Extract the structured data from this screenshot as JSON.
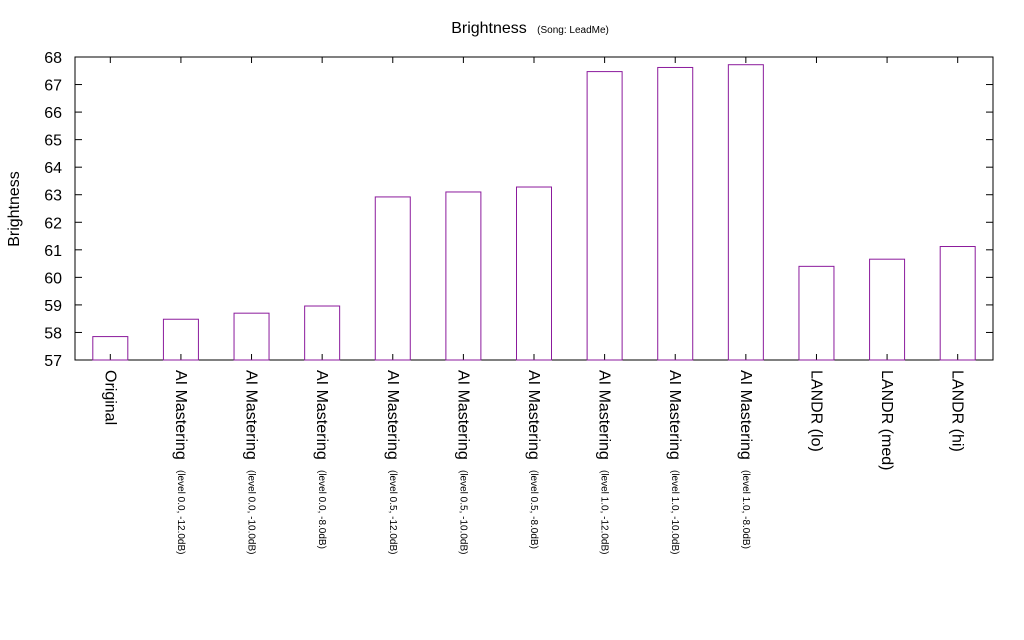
{
  "chart_data": {
    "type": "bar",
    "title": "Brightness",
    "subtitle": "(Song: LeadMe)",
    "xlabel": "",
    "ylabel": "Brightness",
    "ylim": [
      57,
      68
    ],
    "yticks": [
      "57",
      "58",
      "59",
      "60",
      "61",
      "62",
      "63",
      "64",
      "65",
      "66",
      "67",
      "68"
    ],
    "grid": false,
    "bar_color": "#8b1a9c",
    "categories": [
      {
        "label": "Original",
        "sub": ""
      },
      {
        "label": "AI Mastering",
        "sub": "(level 0.0, -12.0dB)"
      },
      {
        "label": "AI Mastering",
        "sub": "(level 0.0, -10.0dB)"
      },
      {
        "label": "AI Mastering",
        "sub": "(level 0.0, -8.0dB)"
      },
      {
        "label": "AI Mastering",
        "sub": "(level 0.5, -12.0dB)"
      },
      {
        "label": "AI Mastering",
        "sub": "(level 0.5, -10.0dB)"
      },
      {
        "label": "AI Mastering",
        "sub": "(level 0.5, -8.0dB)"
      },
      {
        "label": "AI Mastering",
        "sub": "(level 1.0, -12.0dB)"
      },
      {
        "label": "AI Mastering",
        "sub": "(level 1.0, -10.0dB)"
      },
      {
        "label": "AI Mastering",
        "sub": "(level 1.0, -8.0dB)"
      },
      {
        "label": "LANDR (lo)",
        "sub": ""
      },
      {
        "label": "LANDR (med)",
        "sub": ""
      },
      {
        "label": "LANDR (hi)",
        "sub": ""
      }
    ],
    "values": [
      57.85,
      58.48,
      58.7,
      58.96,
      62.92,
      63.1,
      63.28,
      67.47,
      67.62,
      67.72,
      60.4,
      60.66,
      61.12
    ]
  }
}
